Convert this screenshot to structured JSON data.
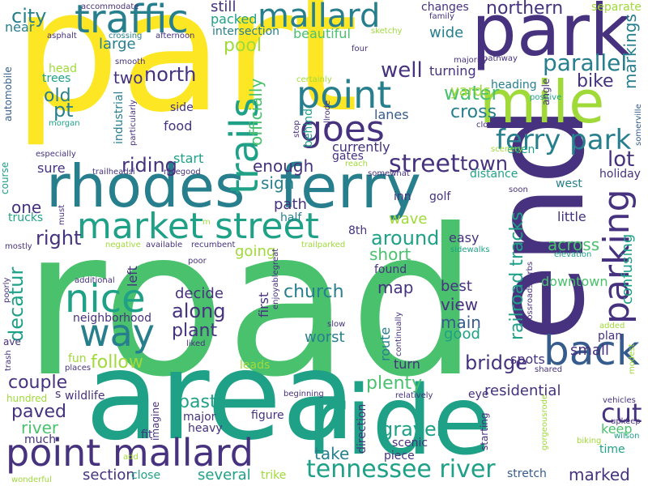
{
  "colors": {
    "yellow": "#fde725",
    "lime": "#a0da39",
    "green": "#4ac16d",
    "teal": "#1fa187",
    "cyan": "#277f8e",
    "blue": "#365c8d",
    "indigo": "#46327e",
    "purple": "#440154"
  },
  "words": [
    {
      "text": "road",
      "color": "green"
    },
    {
      "text": "part",
      "color": "yellow"
    },
    {
      "text": "area",
      "color": "teal"
    },
    {
      "text": "ride",
      "color": "teal"
    },
    {
      "text": "end",
      "color": "indigo"
    },
    {
      "text": "park",
      "color": "indigo"
    },
    {
      "text": "mile",
      "color": "lime"
    },
    {
      "text": "rhodes",
      "color": "cyan"
    },
    {
      "text": "ferry",
      "color": "cyan"
    },
    {
      "text": "point mallard",
      "color": "indigo"
    },
    {
      "text": "traffic",
      "color": "cyan"
    },
    {
      "text": "mallard",
      "color": "cyan"
    },
    {
      "text": "market street",
      "color": "teal"
    },
    {
      "text": "back",
      "color": "blue"
    },
    {
      "text": "point",
      "color": "cyan"
    },
    {
      "text": "goes",
      "color": "indigo"
    },
    {
      "text": "nice",
      "color": "teal"
    },
    {
      "text": "way",
      "color": "cyan"
    },
    {
      "text": "trails",
      "color": "teal"
    },
    {
      "text": "ferry park",
      "color": "cyan"
    },
    {
      "text": "parking",
      "color": "indigo"
    },
    {
      "text": "tennessee river",
      "color": "teal"
    },
    {
      "text": "street",
      "color": "indigo"
    },
    {
      "text": "railroad tracks",
      "color": "teal"
    },
    {
      "text": "parallel",
      "color": "cyan"
    },
    {
      "text": "cut",
      "color": "indigo"
    },
    {
      "text": "city",
      "color": "cyan"
    },
    {
      "text": "northern",
      "color": "indigo"
    },
    {
      "text": "well",
      "color": "indigo"
    },
    {
      "text": "water",
      "color": "green"
    },
    {
      "text": "cross",
      "color": "cyan"
    },
    {
      "text": "lot",
      "color": "indigo"
    },
    {
      "text": "north",
      "color": "indigo"
    },
    {
      "text": "pool",
      "color": "lime"
    },
    {
      "text": "bike",
      "color": "indigo"
    },
    {
      "text": "markings",
      "color": "cyan"
    },
    {
      "text": "pt",
      "color": "cyan"
    },
    {
      "text": "old",
      "color": "cyan"
    },
    {
      "text": "riding",
      "color": "indigo"
    },
    {
      "text": "enough",
      "color": "indigo"
    },
    {
      "text": "sign",
      "color": "cyan"
    },
    {
      "text": "town",
      "color": "indigo"
    },
    {
      "text": "around",
      "color": "teal"
    },
    {
      "text": "right",
      "color": "indigo"
    },
    {
      "text": "one",
      "color": "indigo"
    },
    {
      "text": "decatur",
      "color": "teal"
    },
    {
      "text": "church",
      "color": "cyan"
    },
    {
      "text": "along",
      "color": "indigo"
    },
    {
      "text": "plant",
      "color": "indigo"
    },
    {
      "text": "follow",
      "color": "lime"
    },
    {
      "text": "couple",
      "color": "indigo"
    },
    {
      "text": "paved",
      "color": "indigo"
    },
    {
      "text": "bridge",
      "color": "indigo"
    },
    {
      "text": "plenty",
      "color": "green"
    },
    {
      "text": "residential",
      "color": "indigo"
    },
    {
      "text": "marked",
      "color": "indigo"
    },
    {
      "text": "gravel",
      "color": "teal"
    },
    {
      "text": "take",
      "color": "cyan"
    },
    {
      "text": "river",
      "color": "green"
    },
    {
      "text": "section",
      "color": "indigo"
    },
    {
      "text": "several",
      "color": "teal"
    },
    {
      "text": "going",
      "color": "lime"
    },
    {
      "text": "short",
      "color": "green"
    },
    {
      "text": "across",
      "color": "green"
    },
    {
      "text": "downtown",
      "color": "green"
    },
    {
      "text": "confusing",
      "color": "teal"
    },
    {
      "text": "map",
      "color": "indigo"
    },
    {
      "text": "view",
      "color": "indigo"
    },
    {
      "text": "best",
      "color": "indigo"
    },
    {
      "text": "main",
      "color": "blue"
    },
    {
      "text": "good",
      "color": "teal"
    },
    {
      "text": "worst",
      "color": "cyan"
    },
    {
      "text": "decide",
      "color": "indigo"
    },
    {
      "text": "past",
      "color": "teal"
    },
    {
      "text": "small",
      "color": "indigo"
    },
    {
      "text": "still",
      "color": "indigo"
    },
    {
      "text": "packed",
      "color": "teal"
    },
    {
      "text": "changes",
      "color": "indigo"
    },
    {
      "text": "separate",
      "color": "lime"
    },
    {
      "text": "intersection",
      "color": "cyan"
    },
    {
      "text": "beautiful",
      "color": "green"
    },
    {
      "text": "wide",
      "color": "cyan"
    },
    {
      "text": "near",
      "color": "cyan"
    },
    {
      "text": "large",
      "color": "cyan"
    },
    {
      "text": "two",
      "color": "indigo"
    },
    {
      "text": "yards",
      "color": "lime"
    },
    {
      "text": "lanes",
      "color": "blue"
    },
    {
      "text": "turning",
      "color": "indigo"
    },
    {
      "text": "heading",
      "color": "cyan"
    },
    {
      "text": "head",
      "color": "lime"
    },
    {
      "text": "trees",
      "color": "teal"
    },
    {
      "text": "industrial",
      "color": "cyan"
    },
    {
      "text": "officially",
      "color": "green"
    },
    {
      "text": "side",
      "color": "indigo"
    },
    {
      "text": "food",
      "color": "indigo"
    },
    {
      "text": "behind",
      "color": "teal"
    },
    {
      "text": "currently",
      "color": "indigo"
    },
    {
      "text": "even",
      "color": "teal"
    },
    {
      "text": "start",
      "color": "teal"
    },
    {
      "text": "gates",
      "color": "indigo"
    },
    {
      "text": "distance",
      "color": "teal"
    },
    {
      "text": "holiday",
      "color": "indigo"
    },
    {
      "text": "sure",
      "color": "indigo"
    },
    {
      "text": "west",
      "color": "cyan"
    },
    {
      "text": "inn",
      "color": "indigo"
    },
    {
      "text": "golf",
      "color": "indigo"
    },
    {
      "text": "path",
      "color": "indigo"
    },
    {
      "text": "wave",
      "color": "lime"
    },
    {
      "text": "little",
      "color": "indigo"
    },
    {
      "text": "easy",
      "color": "indigo"
    },
    {
      "text": "8th",
      "color": "indigo"
    },
    {
      "text": "trucks",
      "color": "teal"
    },
    {
      "text": "half",
      "color": "cyan"
    },
    {
      "text": "left",
      "color": "indigo"
    },
    {
      "text": "first",
      "color": "indigo"
    },
    {
      "text": "found",
      "color": "indigo"
    },
    {
      "text": "neighborhood",
      "color": "indigo"
    },
    {
      "text": "route",
      "color": "cyan"
    },
    {
      "text": "turn",
      "color": "indigo"
    },
    {
      "text": "spots",
      "color": "indigo"
    },
    {
      "text": "leads",
      "color": "lime"
    },
    {
      "text": "fun",
      "color": "lime"
    },
    {
      "text": "wildlife",
      "color": "indigo"
    },
    {
      "text": "eye",
      "color": "indigo"
    },
    {
      "text": "much",
      "color": "indigo"
    },
    {
      "text": "scenic",
      "color": "indigo"
    },
    {
      "text": "stretch",
      "color": "blue"
    },
    {
      "text": "trike",
      "color": "lime"
    },
    {
      "text": "close",
      "color": "teal"
    },
    {
      "text": "time",
      "color": "teal"
    },
    {
      "text": "plan",
      "color": "indigo"
    },
    {
      "text": "keep",
      "color": "green"
    },
    {
      "text": "figure",
      "color": "indigo"
    },
    {
      "text": "major",
      "color": "indigo"
    },
    {
      "text": "heavy",
      "color": "indigo"
    },
    {
      "text": "fit",
      "color": "indigo"
    },
    {
      "text": "piece",
      "color": "indigo"
    },
    {
      "text": "s",
      "color": "indigo"
    },
    {
      "text": "hundred",
      "color": "lime"
    },
    {
      "text": "automobile",
      "color": "blue"
    },
    {
      "text": "course",
      "color": "teal"
    },
    {
      "text": "asphalt",
      "color": "indigo"
    },
    {
      "text": "crossing",
      "color": "cyan"
    },
    {
      "text": "afternoon",
      "color": "indigo"
    },
    {
      "text": "smooth",
      "color": "indigo"
    },
    {
      "text": "accommodate",
      "color": "indigo"
    },
    {
      "text": "family",
      "color": "indigo"
    },
    {
      "text": "majority",
      "color": "indigo"
    },
    {
      "text": "pathway",
      "color": "indigo"
    },
    {
      "text": "four",
      "color": "indigo"
    },
    {
      "text": "sketchy",
      "color": "lime"
    },
    {
      "text": "allrode",
      "color": "indigo"
    },
    {
      "text": "certainly",
      "color": "lime"
    },
    {
      "text": "positive",
      "color": "teal"
    },
    {
      "text": "closer",
      "color": "indigo"
    },
    {
      "text": "morgan",
      "color": "teal"
    },
    {
      "text": "particularly",
      "color": "indigo"
    },
    {
      "text": "stop",
      "color": "indigo"
    },
    {
      "text": "especially",
      "color": "indigo"
    },
    {
      "text": "scenery",
      "color": "lime"
    },
    {
      "text": "somerville",
      "color": "blue"
    },
    {
      "text": "trailheadsi",
      "color": "indigo"
    },
    {
      "text": "nicegood",
      "color": "indigo"
    },
    {
      "text": "reach",
      "color": "lime"
    },
    {
      "text": "somewhat",
      "color": "indigo"
    },
    {
      "text": "soon",
      "color": "indigo"
    },
    {
      "text": "angle",
      "color": "indigo"
    },
    {
      "text": "must",
      "color": "indigo"
    },
    {
      "text": "negative",
      "color": "lime"
    },
    {
      "text": "available",
      "color": "indigo"
    },
    {
      "text": "recumbent",
      "color": "indigo"
    },
    {
      "text": "trailparked",
      "color": "lime"
    },
    {
      "text": "sidewalks",
      "color": "teal"
    },
    {
      "text": "elevation",
      "color": "teal"
    },
    {
      "text": "mostly",
      "color": "indigo"
    },
    {
      "text": "poor",
      "color": "indigo"
    },
    {
      "text": "enjoyablegreat",
      "color": "indigo"
    },
    {
      "text": "crossroadscurbs",
      "color": "indigo"
    },
    {
      "text": "additional",
      "color": "indigo"
    },
    {
      "text": "poorly",
      "color": "indigo"
    },
    {
      "text": "slow",
      "color": "indigo"
    },
    {
      "text": "continually",
      "color": "indigo"
    },
    {
      "text": "added",
      "color": "lime"
    },
    {
      "text": "liked",
      "color": "indigo"
    },
    {
      "text": "ave",
      "color": "indigo"
    },
    {
      "text": "trash",
      "color": "indigo"
    },
    {
      "text": "places",
      "color": "indigo"
    },
    {
      "text": "shared",
      "color": "indigo"
    },
    {
      "text": "modest",
      "color": "lime"
    },
    {
      "text": "beginning",
      "color": "indigo"
    },
    {
      "text": "relatively",
      "color": "indigo"
    },
    {
      "text": "vehicles",
      "color": "indigo"
    },
    {
      "text": "imagine",
      "color": "indigo"
    },
    {
      "text": "direction",
      "color": "indigo"
    },
    {
      "text": "starting",
      "color": "indigo"
    },
    {
      "text": "gorgeousrode",
      "color": "lime"
    },
    {
      "text": "upkeep",
      "color": "indigo"
    },
    {
      "text": "biking",
      "color": "lime"
    },
    {
      "text": "wilson",
      "color": "teal"
    },
    {
      "text": "wonderful",
      "color": "lime"
    },
    {
      "text": "add",
      "color": "lime"
    },
    {
      "text": "m",
      "color": "lime"
    }
  ]
}
